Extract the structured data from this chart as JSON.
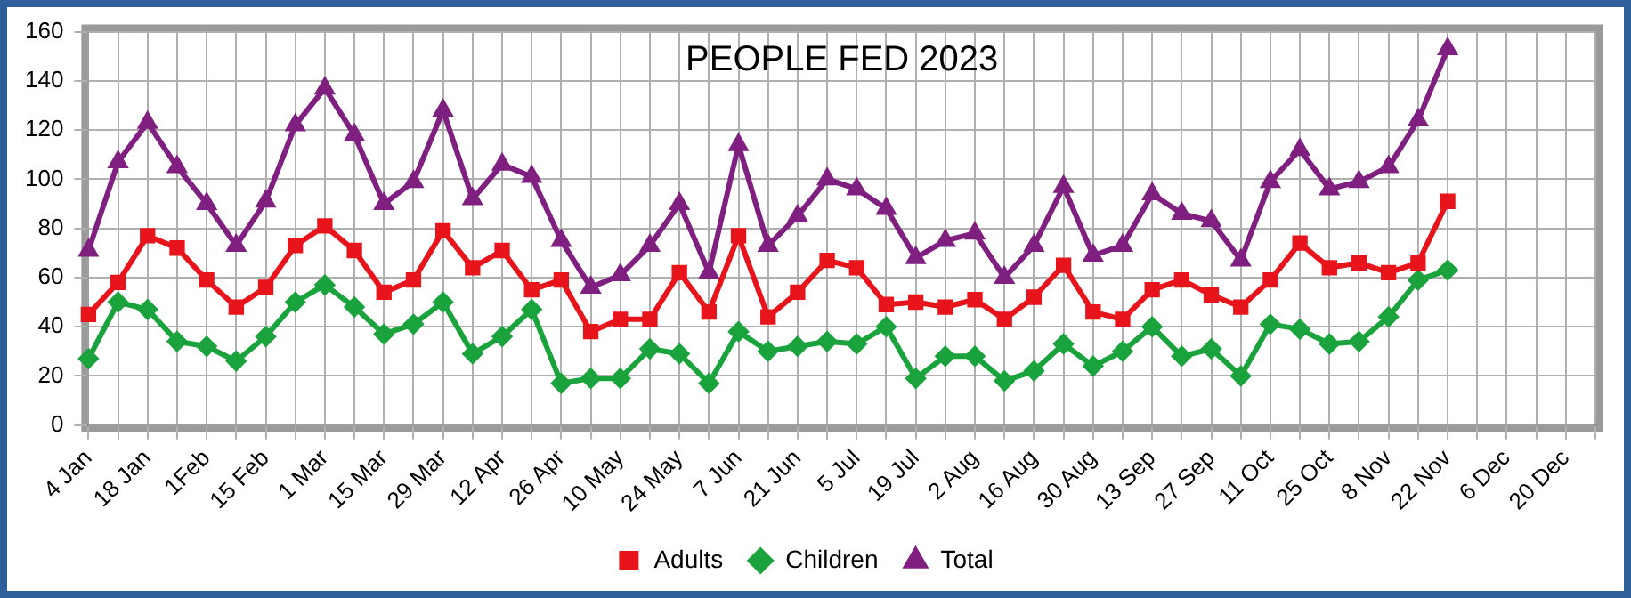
{
  "chart_data": {
    "type": "line",
    "title": "PEOPLE FED 2023",
    "categories": [
      "4 Jan",
      null,
      "18 Jan",
      null,
      "1Feb",
      null,
      "15 Feb",
      null,
      "1 Mar",
      null,
      "15 Mar",
      null,
      "29 Mar",
      null,
      "12 Apr",
      null,
      "26 Apr",
      null,
      "10 May",
      null,
      "24 May",
      null,
      "7 Jun",
      null,
      "21 Jun",
      null,
      "5 Jul",
      null,
      "19 Jul",
      null,
      "2 Aug",
      null,
      "16 Aug",
      null,
      "30 Aug",
      null,
      "13 Sep",
      null,
      "27 Sep",
      null,
      "11 Oct",
      null,
      "25 Oct",
      null,
      "8 Nov",
      null,
      "22 Nov",
      null,
      "6 Dec",
      null,
      "20 Dec",
      null
    ],
    "series": [
      {
        "name": "Adults",
        "color": "#e8141c",
        "marker": "square",
        "values": [
          45,
          58,
          77,
          72,
          59,
          48,
          56,
          73,
          81,
          71,
          54,
          59,
          79,
          64,
          71,
          55,
          59,
          38,
          43,
          43,
          62,
          46,
          77,
          44,
          54,
          67,
          64,
          49,
          50,
          48,
          51,
          43,
          52,
          65,
          46,
          43,
          55,
          59,
          53,
          48,
          59,
          74,
          64,
          66,
          62,
          66,
          91,
          null,
          null,
          null,
          null,
          null
        ]
      },
      {
        "name": "Children",
        "color": "#1aa33c",
        "marker": "diamond",
        "values": [
          27,
          50,
          47,
          34,
          32,
          26,
          36,
          50,
          57,
          48,
          37,
          41,
          50,
          29,
          36,
          47,
          17,
          19,
          19,
          31,
          29,
          17,
          38,
          30,
          32,
          34,
          33,
          40,
          19,
          28,
          28,
          18,
          22,
          33,
          24,
          30,
          40,
          28,
          31,
          20,
          41,
          39,
          33,
          34,
          44,
          59,
          63,
          null,
          null,
          null,
          null,
          null
        ]
      },
      {
        "name": "Total",
        "color": "#7f1f7f",
        "marker": "triangle",
        "values": [
          71,
          107,
          123,
          105,
          90,
          73,
          91,
          122,
          137,
          118,
          90,
          99,
          128,
          92,
          106,
          101,
          75,
          56,
          61,
          73,
          90,
          62,
          114,
          73,
          85,
          100,
          96,
          88,
          68,
          75,
          78,
          60,
          73,
          97,
          69,
          73,
          94,
          86,
          83,
          67,
          99,
          112,
          96,
          99,
          105,
          124,
          153,
          null,
          null,
          null,
          null,
          null
        ]
      }
    ],
    "ylim": [
      0,
      160
    ],
    "yticks": [
      0,
      20,
      40,
      60,
      80,
      100,
      120,
      140,
      160
    ],
    "grid": true,
    "legend": "bottom",
    "line_style": "solid"
  }
}
